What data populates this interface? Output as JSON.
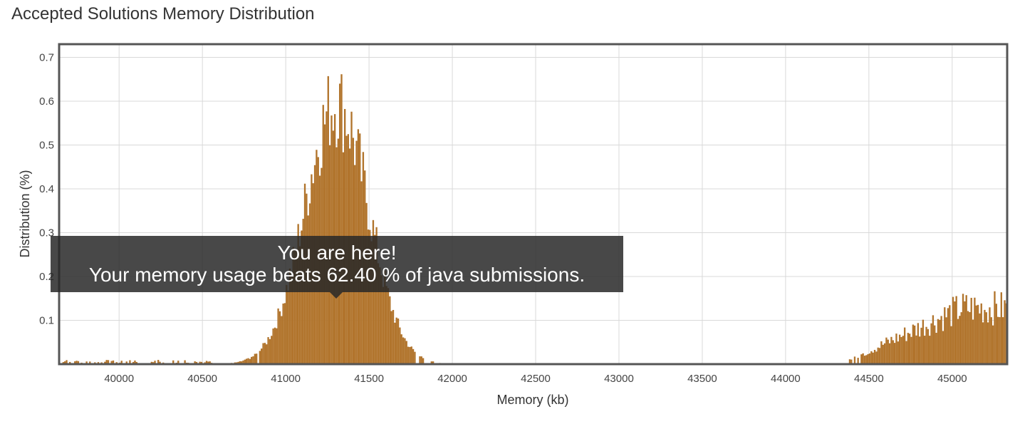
{
  "chart_data": {
    "type": "bar",
    "title": "Accepted Solutions Memory Distribution",
    "xlabel": "Memory (kb)",
    "ylabel": "Distribution (%)",
    "xlim": [
      39640,
      45330
    ],
    "ylim": [
      0,
      0.73
    ],
    "x_ticks": [
      "40000",
      "40500",
      "41000",
      "41500",
      "42000",
      "42500",
      "43000",
      "43500",
      "44000",
      "44500",
      "45000"
    ],
    "y_ticks": [
      "0.1",
      "0.2",
      "0.3",
      "0.4",
      "0.5",
      "0.6",
      "0.7"
    ],
    "bar_color": "#b1742c",
    "grid": true,
    "bin_width_kb": 10,
    "histogram": [
      {
        "x": [
          39640,
          40580
        ],
        "peak": 0.01,
        "shape": "flat"
      },
      {
        "x": [
          40580,
          42080
        ],
        "peak": 0.61,
        "peak_at": 41300,
        "shape": "bell"
      },
      {
        "x": [
          44380,
          45330
        ],
        "peak": 0.16,
        "peak_at": 45000,
        "shape": "rising"
      }
    ],
    "annotations": [
      {
        "x": 41300,
        "text": [
          "You are here!",
          "Your memory usage beats 62.40 % of java submissions."
        ]
      }
    ]
  },
  "tooltip": {
    "line1": "You are here!",
    "line2": "Your memory usage beats 62.40 % of java submissions."
  }
}
